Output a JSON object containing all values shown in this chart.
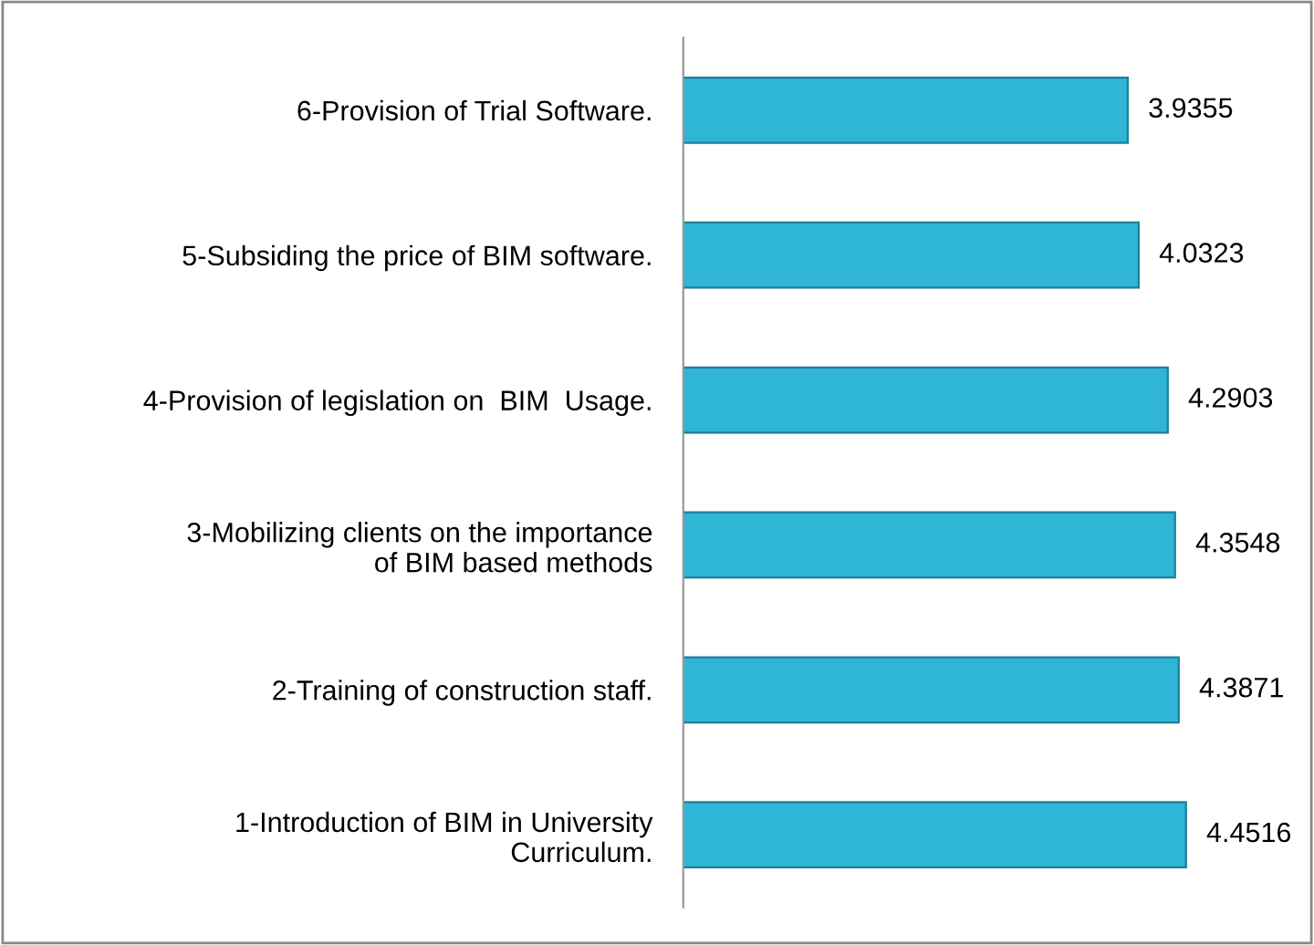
{
  "chart_data": {
    "type": "bar",
    "orientation": "horizontal",
    "categories": [
      "6-Provision of Trial Software.",
      "5-Subsiding the price of BIM software.",
      "4-Provision of legislation on  BIM  Usage.",
      "3-Mobilizing clients on the importance\nof BIM based methods",
      "2-Training of construction staff.",
      "1-Introduction of BIM in University\nCurriculum."
    ],
    "values": [
      3.9355,
      4.0323,
      4.2903,
      4.3548,
      4.3871,
      4.4516
    ],
    "color": "#2fb5d6",
    "data_labels": true,
    "grid": false,
    "legend": false
  }
}
